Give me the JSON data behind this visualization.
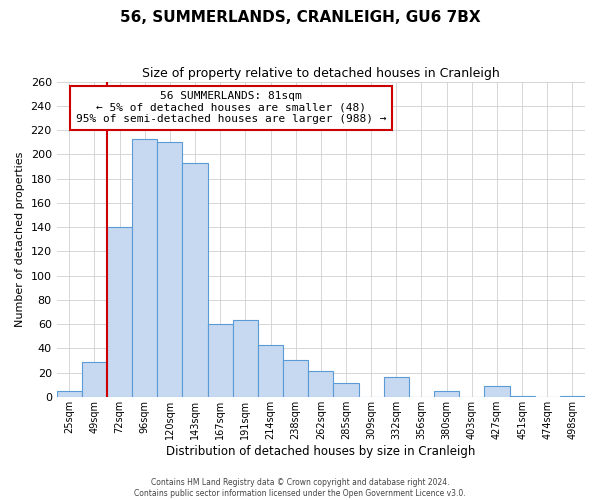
{
  "title": "56, SUMMERLANDS, CRANLEIGH, GU6 7BX",
  "subtitle": "Size of property relative to detached houses in Cranleigh",
  "xlabel": "Distribution of detached houses by size in Cranleigh",
  "ylabel": "Number of detached properties",
  "bar_labels": [
    "25sqm",
    "49sqm",
    "72sqm",
    "96sqm",
    "120sqm",
    "143sqm",
    "167sqm",
    "191sqm",
    "214sqm",
    "238sqm",
    "262sqm",
    "285sqm",
    "309sqm",
    "332sqm",
    "356sqm",
    "380sqm",
    "403sqm",
    "427sqm",
    "451sqm",
    "474sqm",
    "498sqm"
  ],
  "bar_values": [
    5,
    29,
    140,
    213,
    210,
    193,
    60,
    63,
    43,
    30,
    21,
    11,
    0,
    16,
    0,
    5,
    0,
    9,
    1,
    0,
    1
  ],
  "bar_color": "#c6d9f1",
  "bar_edge_color": "#5b9bd5",
  "grid_color": "#d0d0d0",
  "vline_idx": 2,
  "vline_color": "#cc0000",
  "annotation_title": "56 SUMMERLANDS: 81sqm",
  "annotation_line1": "← 5% of detached houses are smaller (48)",
  "annotation_line2": "95% of semi-detached houses are larger (988) →",
  "annotation_box_facecolor": "#ffffff",
  "annotation_box_edgecolor": "#cc0000",
  "footer_line1": "Contains HM Land Registry data © Crown copyright and database right 2024.",
  "footer_line2": "Contains public sector information licensed under the Open Government Licence v3.0.",
  "ylim": [
    0,
    260
  ],
  "yticks": [
    0,
    20,
    40,
    60,
    80,
    100,
    120,
    140,
    160,
    180,
    200,
    220,
    240,
    260
  ],
  "title_fontsize": 11,
  "subtitle_fontsize": 9,
  "ylabel_fontsize": 8,
  "xlabel_fontsize": 8.5
}
